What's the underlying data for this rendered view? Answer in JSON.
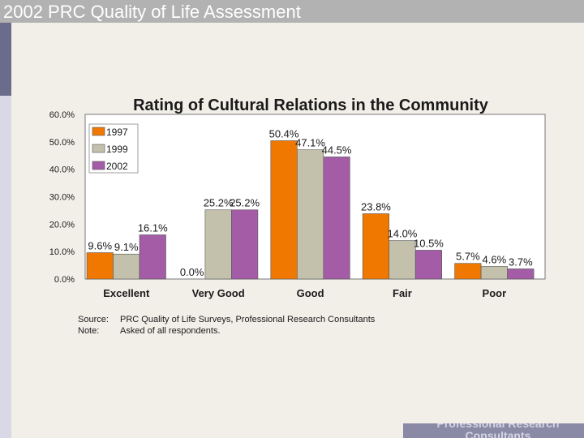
{
  "header": {
    "title": "2002 PRC Quality of Life Assessment"
  },
  "footer": {
    "brand": "Professional Research Consultants"
  },
  "notes": {
    "source_label": "Source:",
    "source_text": "PRC Quality of Life Surveys, Professional Research Consultants",
    "note_label": "Note:",
    "note_text": "Asked of all respondents."
  },
  "colors": {
    "1997": "#f07800",
    "1999": "#c3c1ac",
    "2002": "#a45ca6"
  },
  "chart_data": {
    "type": "bar",
    "title": "Rating of Cultural Relations in the Community",
    "categories": [
      "Excellent",
      "Very Good",
      "Good",
      "Fair",
      "Poor"
    ],
    "series": [
      {
        "name": "1997",
        "values": [
          9.6,
          0.0,
          50.4,
          23.8,
          5.7
        ],
        "labels": [
          "9.6%",
          "0.0%",
          "50.4%",
          "23.8%",
          "5.7%"
        ]
      },
      {
        "name": "1999",
        "values": [
          9.1,
          25.2,
          47.1,
          14.0,
          4.6
        ],
        "labels": [
          "9.1%",
          "25.2%",
          "47.1%",
          "14.0%",
          "4.6%"
        ]
      },
      {
        "name": "2002",
        "values": [
          16.1,
          25.2,
          44.5,
          10.5,
          3.7
        ],
        "labels": [
          "16.1%",
          "25.2%",
          "44.5%",
          "10.5%",
          "3.7%"
        ]
      }
    ],
    "yticks": [
      "0.0%",
      "10.0%",
      "20.0%",
      "30.0%",
      "40.0%",
      "50.0%",
      "60.0%"
    ],
    "ylim": [
      0,
      60
    ],
    "legend": "top-left",
    "grid": false
  }
}
